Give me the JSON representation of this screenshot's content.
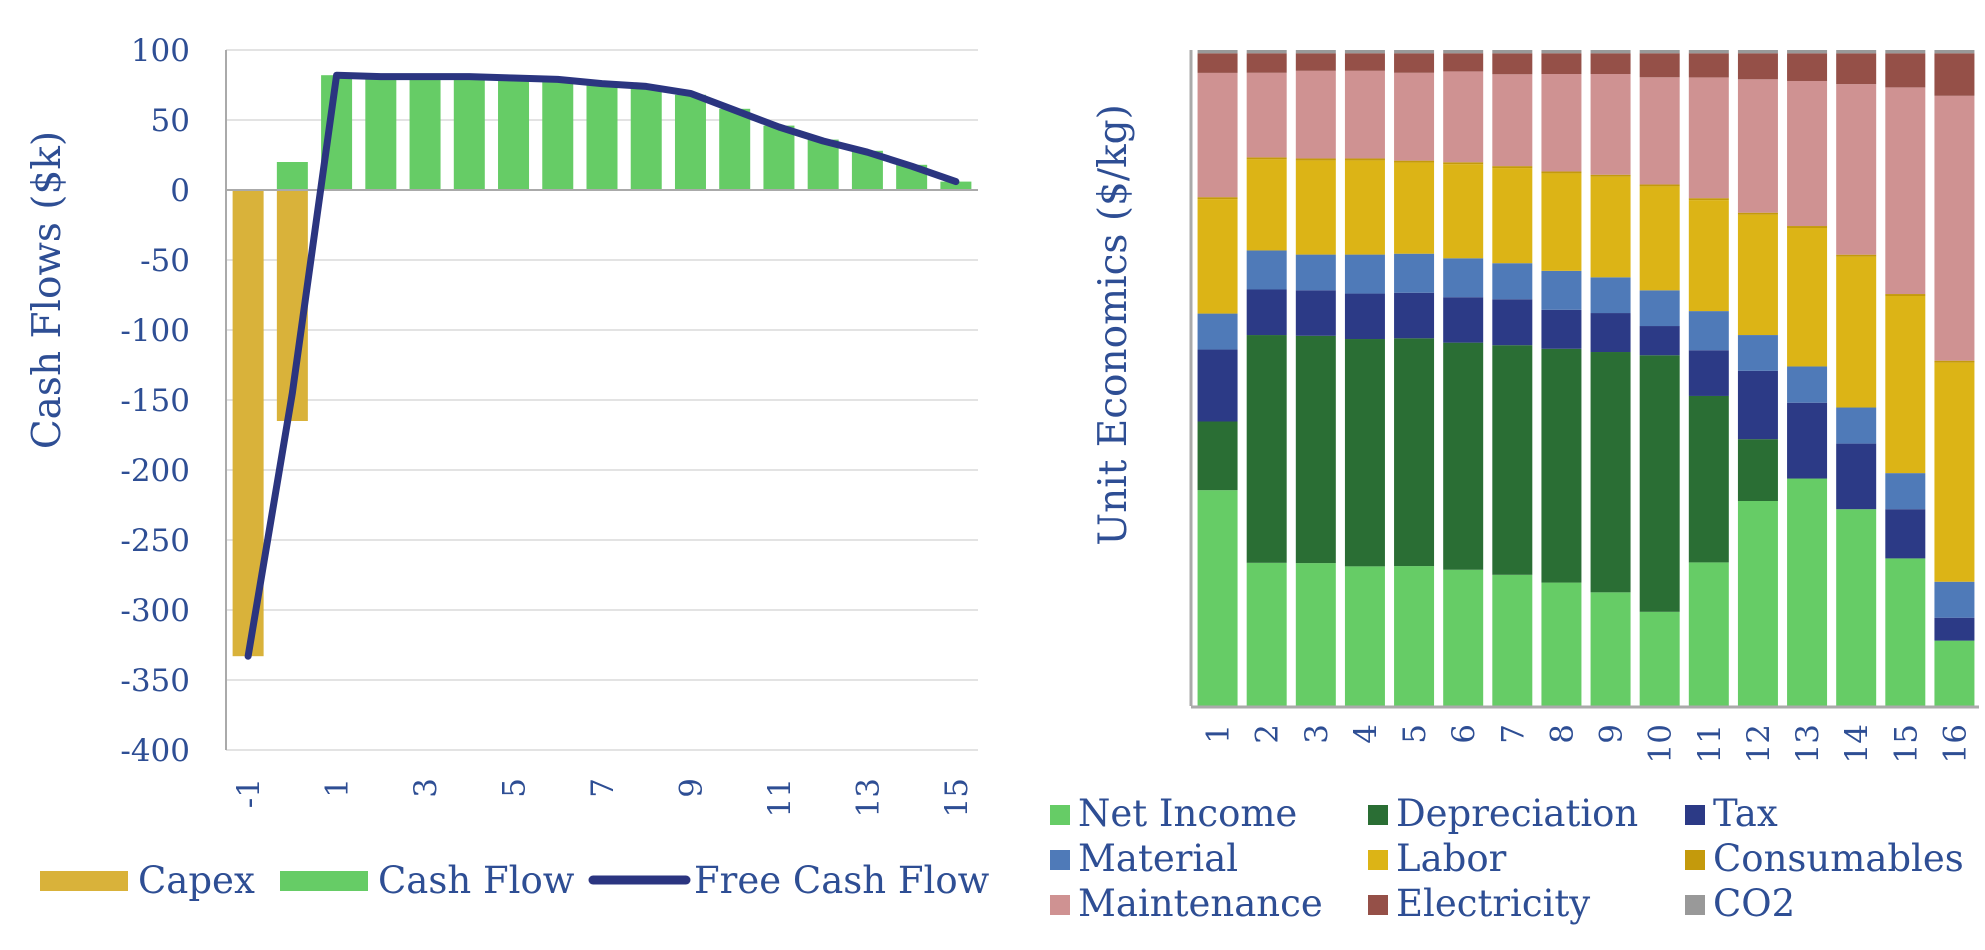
{
  "colors": {
    "capex": "#d9b23a",
    "cash_flow": "#66cc66",
    "free_cash_flow": "#2b3580",
    "net_income": "#66cc66",
    "depreciation": "#2a6e34",
    "tax": "#2c3a86",
    "material": "#4f7ab8",
    "labor": "#dcb416",
    "consumables": "#c49a0c",
    "maintenance": "#cf9292",
    "electricity": "#955048",
    "co2": "#999999",
    "text": "#2e4e94",
    "axis": "#aaaaaa",
    "grid": "#e3e3e3"
  },
  "chart_data": [
    {
      "type": "bar",
      "ylabel": "Cash Flows ($k)",
      "ylim": [
        -400,
        100
      ],
      "yticks": [
        100,
        50,
        0,
        -50,
        -100,
        -150,
        -200,
        -250,
        -300,
        -350,
        -400
      ],
      "x": [
        -1,
        0,
        1,
        2,
        3,
        4,
        5,
        6,
        7,
        8,
        9,
        10,
        11,
        12,
        13,
        14,
        15
      ],
      "xtick_labels": [
        "-1",
        "1",
        "3",
        "5",
        "7",
        "9",
        "11",
        "13",
        "15"
      ],
      "grid": true,
      "legend_position": "bottom",
      "series": [
        {
          "name": "Capex",
          "kind": "bar",
          "values": [
            -333,
            -165,
            0,
            0,
            0,
            0,
            0,
            0,
            0,
            0,
            0,
            0,
            0,
            0,
            0,
            0,
            0
          ]
        },
        {
          "name": "Cash Flow",
          "kind": "bar",
          "values": [
            0,
            20,
            82,
            81,
            80,
            80,
            80,
            79,
            76,
            73,
            68,
            58,
            46,
            36,
            28,
            18,
            6
          ]
        },
        {
          "name": "Free Cash Flow",
          "kind": "line",
          "values": [
            -333,
            -145,
            82,
            81,
            81,
            81,
            80,
            79,
            76,
            74,
            69,
            57,
            45,
            35,
            27,
            17,
            6
          ]
        }
      ]
    },
    {
      "type": "bar",
      "stacked": true,
      "normalized": true,
      "ylabel": "Unit Economics ($/kg)",
      "categories": [
        "1",
        "2",
        "3",
        "4",
        "5",
        "6",
        "7",
        "8",
        "9",
        "10",
        "11",
        "12",
        "13",
        "14",
        "15",
        "16"
      ],
      "legend_position": "bottom",
      "series": [
        {
          "name": "Net Income",
          "values": [
            33,
            22,
            22,
            21.5,
            21.5,
            21,
            20,
            19,
            17.5,
            14.5,
            22,
            31.5,
            34.5,
            30,
            22.5,
            10
          ]
        },
        {
          "name": "Depreciation",
          "values": [
            10.5,
            35,
            35,
            35,
            35,
            35,
            35,
            36,
            37,
            39.5,
            25.5,
            9.5,
            0,
            0,
            0,
            0
          ]
        },
        {
          "name": "Tax",
          "values": [
            11,
            7,
            7,
            7,
            7,
            7,
            7,
            6,
            6,
            4.5,
            7,
            10.5,
            11.5,
            10,
            7.5,
            3.5
          ]
        },
        {
          "name": "Material",
          "values": [
            5.5,
            6,
            5.5,
            6,
            6,
            6,
            5.5,
            6,
            5.5,
            5.5,
            6,
            5.5,
            5.5,
            5.5,
            5.5,
            5.5
          ]
        },
        {
          "name": "Labor",
          "values": [
            17.5,
            14,
            14.5,
            14.5,
            14,
            14.5,
            14.5,
            15,
            15.5,
            16,
            17,
            18.5,
            21,
            23,
            27,
            33.5
          ]
        },
        {
          "name": "Consumables",
          "values": [
            0.3,
            0.3,
            0.3,
            0.3,
            0.3,
            0.3,
            0.3,
            0.3,
            0.3,
            0.3,
            0.3,
            0.3,
            0.3,
            0.3,
            0.3,
            0.3
          ]
        },
        {
          "name": "Maintenance",
          "values": [
            19,
            13,
            13.5,
            13.5,
            13.5,
            14,
            14,
            15,
            15.5,
            16.5,
            18.5,
            20.5,
            22,
            26,
            31.5,
            40.5
          ]
        },
        {
          "name": "Electricity",
          "values": [
            3,
            3,
            2.7,
            2.7,
            3,
            2.8,
            3.2,
            3.2,
            3.2,
            3.7,
            3.7,
            4,
            4.2,
            4.7,
            5.2,
            6.5
          ]
        },
        {
          "name": "CO2",
          "values": [
            0.5,
            0.5,
            0.5,
            0.5,
            0.5,
            0.5,
            0.5,
            0.5,
            0.5,
            0.5,
            0.5,
            0.5,
            0.5,
            0.5,
            0.5,
            0.5
          ]
        }
      ]
    }
  ]
}
